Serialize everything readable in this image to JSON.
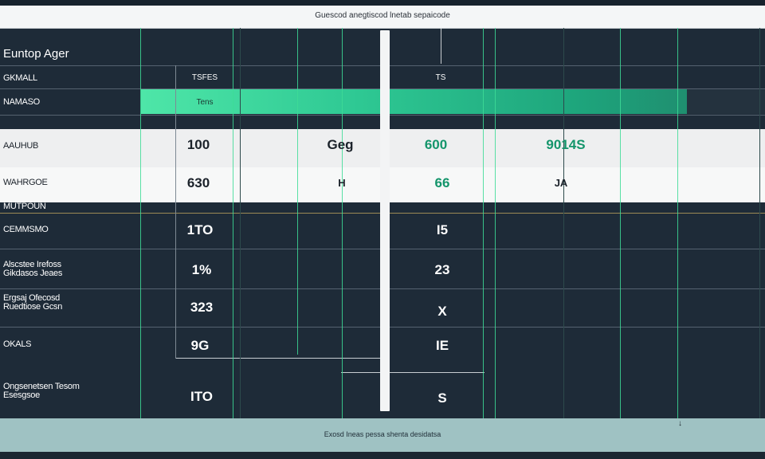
{
  "window": {
    "title": "Guescod anegtiscod lnetab sepaicode"
  },
  "section": {
    "title": "Euntop Ager"
  },
  "rows": [
    {
      "label": "GKMALL",
      "c1": "TSFES",
      "c2": "",
      "c3": "",
      "c4": "TS",
      "c5": "",
      "c6": ""
    },
    {
      "label": "NAMASO",
      "c1": "Tens",
      "c2": "",
      "c3": "",
      "c4": "",
      "c5": "",
      "c6": ""
    },
    {
      "label": "AAUHUB",
      "c1": "100",
      "c2": "",
      "c3": "Geg",
      "c4": "600",
      "c5": "9014S",
      "c6": ""
    },
    {
      "label": "WAHRGOE",
      "c1": "630",
      "c2": "",
      "c3": "H",
      "c4": "66",
      "c5": "JA",
      "c6": ""
    },
    {
      "label": "MUTPOUN",
      "c1": "",
      "c2": "",
      "c3": "",
      "c4": "",
      "c5": "",
      "c6": ""
    },
    {
      "label": "CEMMSMO",
      "c1": "1TO",
      "c2": "",
      "c3": "",
      "c4": "I5",
      "c5": "",
      "c6": ""
    },
    {
      "label": "Alscstee Irefoss Gikdasos Jeaes",
      "c1": "1%",
      "c2": "",
      "c3": "",
      "c4": "23",
      "c5": "",
      "c6": ""
    },
    {
      "label": "Ergsaj Ofecosd Ruedtiose Gcsn",
      "c1": "323",
      "c2": "",
      "c3": "",
      "c4": "X",
      "c5": "",
      "c6": ""
    },
    {
      "label": "OKALS",
      "c1": "9G",
      "c2": "",
      "c3": "",
      "c4": "IE",
      "c5": "",
      "c6": ""
    },
    {
      "label": "Ongsenetsen Tesom Esesgsoe",
      "c1": "ITO",
      "c2": "",
      "c3": "",
      "c4": "S",
      "c5": "",
      "c6": ""
    }
  ],
  "highlight": {
    "bar_fraction": 0.87
  },
  "footer": {
    "text": "Exosd Ineas pessa shenta desidatsa",
    "marker": "↓"
  },
  "colors": {
    "background": "#1e2b38",
    "accent": "#3ddc97",
    "green_text": "#14956b",
    "footer": "#9fc2c3"
  }
}
